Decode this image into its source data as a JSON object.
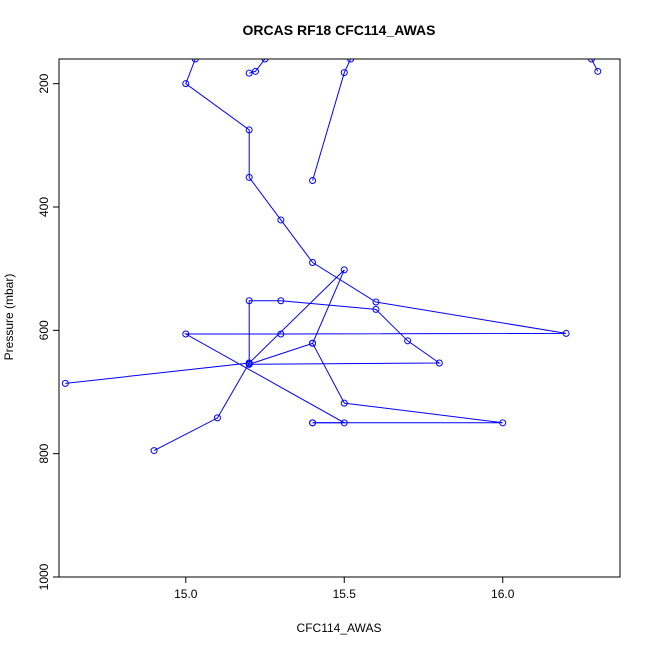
{
  "chart_data": {
    "type": "line",
    "title": "ORCAS RF18 CFC114_AWAS",
    "xlabel": "CFC114_AWAS",
    "ylabel": "Pressure (mbar)",
    "xlim": [
      14.6,
      16.37
    ],
    "ylim": [
      1000,
      160
    ],
    "y_reversed": true,
    "x_ticks": [
      "15.0",
      "15.5",
      "16.0"
    ],
    "x_tick_values": [
      15.0,
      15.5,
      16.0
    ],
    "y_ticks": [
      "200",
      "400",
      "600",
      "800",
      "1000"
    ],
    "y_tick_values": [
      200,
      400,
      600,
      800,
      1000
    ],
    "grid": false,
    "legend": "none",
    "series": [
      {
        "color": "#0000ff",
        "marker": "open-circle",
        "x": [
          14.9,
          15.1,
          15.2,
          14.62,
          15.2,
          15.5,
          15.4,
          15.2,
          15.2,
          15.3,
          15.6,
          15.7,
          15.8,
          15.2,
          15.4,
          15.5,
          16.0,
          15.4
        ],
        "y": [
          795,
          742,
          653,
          686,
          653,
          502,
          621,
          655,
          552,
          552,
          566,
          617,
          653,
          655,
          621,
          718,
          750,
          750
        ]
      },
      {
        "color": "#0000ff",
        "marker": "open-circle",
        "x": [
          15.4,
          15.5,
          15.0,
          15.3,
          16.2,
          15.6,
          15.4,
          15.3,
          15.2,
          15.2,
          15.0,
          15.03
        ],
        "y": [
          750,
          750,
          606,
          606,
          605,
          554,
          490,
          421,
          352,
          275,
          200,
          160
        ]
      },
      {
        "color": "#0000ff",
        "marker": "open-circle",
        "x": [
          15.4,
          15.5,
          15.52
        ],
        "y": [
          357,
          182,
          160
        ]
      },
      {
        "color": "#0000ff",
        "marker": "open-circle",
        "x": [
          15.2,
          15.22,
          15.25
        ],
        "y": [
          183,
          180,
          160
        ]
      },
      {
        "color": "#0000ff",
        "marker": "open-circle",
        "x": [
          16.3,
          16.28
        ],
        "y": [
          180,
          160
        ]
      }
    ]
  }
}
